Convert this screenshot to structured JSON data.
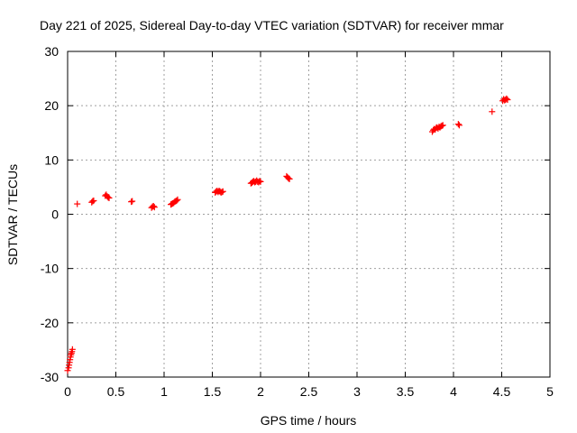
{
  "chart_data": {
    "type": "scatter",
    "title": "Day 221 of 2025, Sidereal Day-to-day VTEC variation (SDTVAR) for receiver mmar",
    "xlabel": "GPS time / hours",
    "ylabel": "SDTVAR / TECUs",
    "xlim": [
      0,
      5
    ],
    "ylim": [
      -30,
      30
    ],
    "xticks": [
      "0",
      "0.5",
      "1",
      "1.5",
      "2",
      "2.5",
      "3",
      "3.5",
      "4",
      "4.5",
      "5"
    ],
    "yticks": [
      "30",
      "20",
      "10",
      "0",
      "-10",
      "-20",
      "-30"
    ],
    "grid": true,
    "marker": "plus",
    "color": "#ff0000",
    "series": [
      {
        "name": "SDTVAR",
        "points": [
          [
            0.0,
            -28.8
          ],
          [
            0.01,
            -28.3
          ],
          [
            0.015,
            -27.8
          ],
          [
            0.02,
            -27.3
          ],
          [
            0.025,
            -26.8
          ],
          [
            0.03,
            -26.3
          ],
          [
            0.035,
            -25.9
          ],
          [
            0.04,
            -25.6
          ],
          [
            0.045,
            -25.3
          ],
          [
            0.05,
            -24.9
          ],
          [
            0.1,
            1.9
          ],
          [
            0.25,
            2.2
          ],
          [
            0.26,
            2.4
          ],
          [
            0.27,
            2.5
          ],
          [
            0.39,
            3.4
          ],
          [
            0.4,
            3.6
          ],
          [
            0.41,
            3.3
          ],
          [
            0.42,
            3.1
          ],
          [
            0.43,
            3.0
          ],
          [
            0.66,
            2.3
          ],
          [
            0.67,
            2.4
          ],
          [
            0.87,
            1.2
          ],
          [
            0.88,
            1.4
          ],
          [
            0.89,
            1.5
          ],
          [
            0.9,
            1.3
          ],
          [
            1.07,
            1.8
          ],
          [
            1.08,
            1.9
          ],
          [
            1.09,
            2.0
          ],
          [
            1.1,
            2.1
          ],
          [
            1.11,
            2.3
          ],
          [
            1.12,
            2.4
          ],
          [
            1.13,
            2.5
          ],
          [
            1.14,
            2.7
          ],
          [
            1.53,
            4.0
          ],
          [
            1.54,
            4.2
          ],
          [
            1.55,
            4.3
          ],
          [
            1.56,
            4.1
          ],
          [
            1.57,
            4.3
          ],
          [
            1.58,
            4.2
          ],
          [
            1.59,
            4.0
          ],
          [
            1.6,
            4.1
          ],
          [
            1.61,
            4.2
          ],
          [
            1.9,
            5.7
          ],
          [
            1.91,
            5.8
          ],
          [
            1.92,
            6.0
          ],
          [
            1.93,
            6.1
          ],
          [
            1.94,
            5.9
          ],
          [
            1.95,
            6.0
          ],
          [
            1.96,
            6.2
          ],
          [
            1.97,
            6.0
          ],
          [
            1.98,
            5.9
          ],
          [
            1.99,
            6.1
          ],
          [
            2.0,
            6.0
          ],
          [
            2.27,
            7.0
          ],
          [
            2.28,
            6.8
          ],
          [
            2.29,
            6.6
          ],
          [
            2.3,
            6.5
          ],
          [
            3.78,
            15.2
          ],
          [
            3.79,
            15.5
          ],
          [
            3.8,
            15.7
          ],
          [
            3.81,
            15.6
          ],
          [
            3.82,
            15.9
          ],
          [
            3.83,
            16.0
          ],
          [
            3.84,
            15.8
          ],
          [
            3.85,
            16.1
          ],
          [
            3.86,
            16.0
          ],
          [
            3.87,
            16.2
          ],
          [
            3.88,
            16.3
          ],
          [
            3.89,
            16.4
          ],
          [
            4.05,
            16.6
          ],
          [
            4.06,
            16.4
          ],
          [
            4.4,
            18.9
          ],
          [
            4.51,
            20.9
          ],
          [
            4.52,
            21.2
          ],
          [
            4.53,
            21.0
          ],
          [
            4.54,
            21.1
          ],
          [
            4.55,
            21.3
          ],
          [
            4.56,
            21.1
          ]
        ]
      }
    ]
  }
}
